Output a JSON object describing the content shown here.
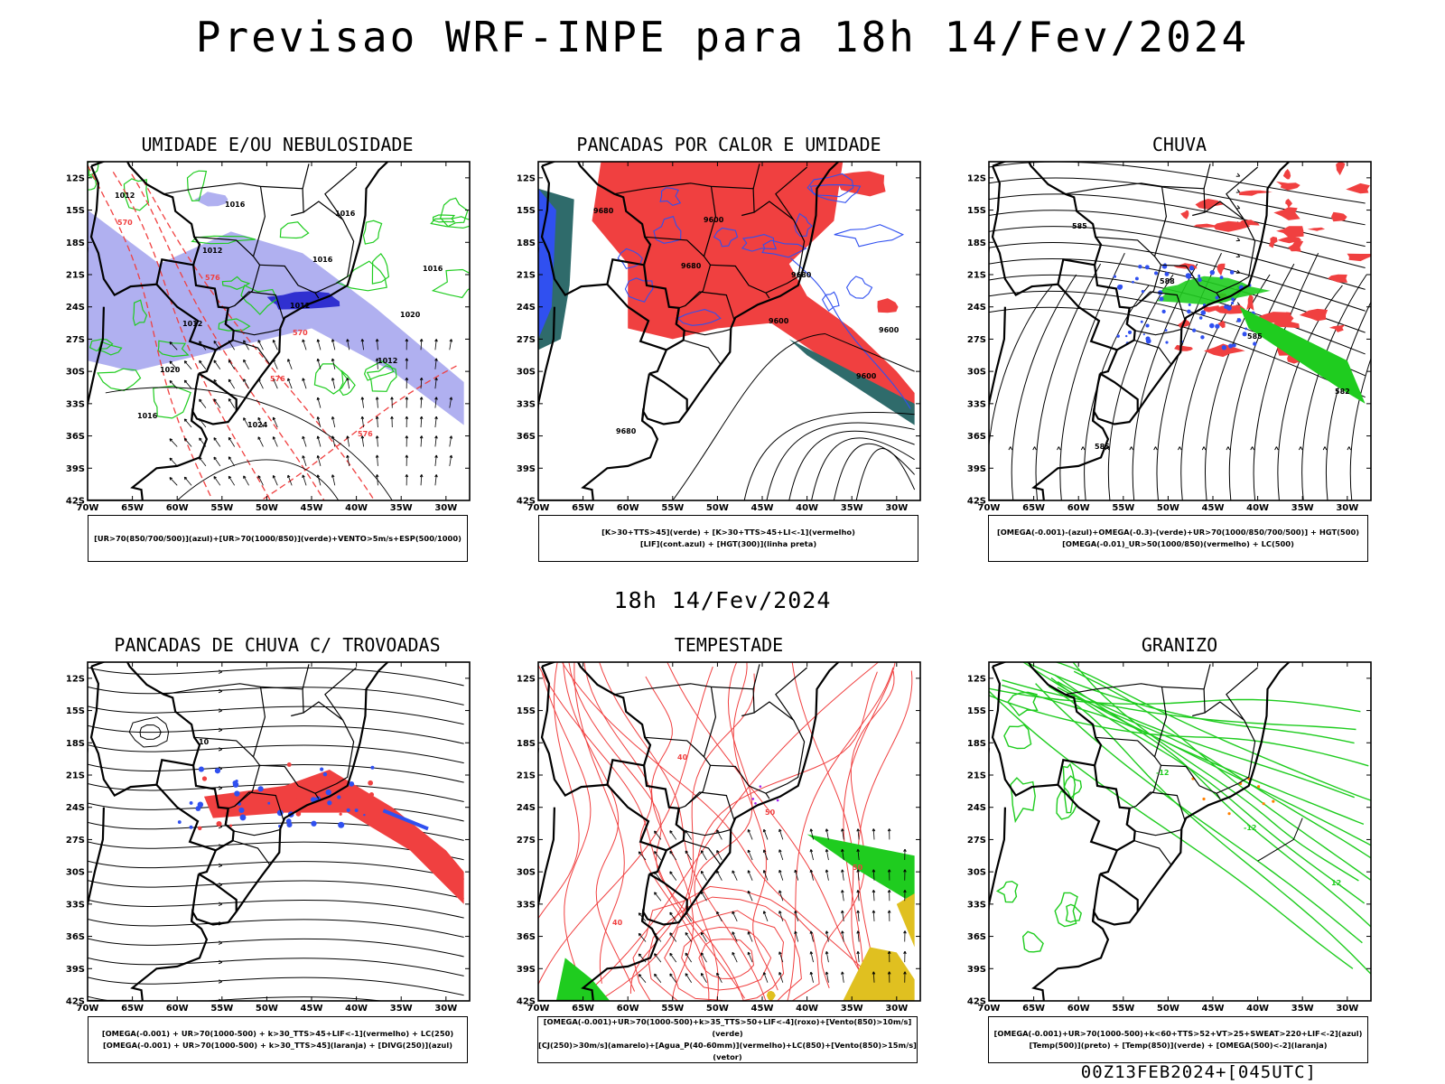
{
  "header": {
    "title": "Previsao WRF-INPE  para 18h 14/Fev/2024",
    "subtitle": "18h 14/Fev/2024",
    "footer": "00Z13FEB2024+[045UTC]"
  },
  "axes": {
    "lat_labels": [
      "12S",
      "15S",
      "18S",
      "21S",
      "24S",
      "27S",
      "30S",
      "33S",
      "36S",
      "39S",
      "42S"
    ],
    "lon_labels": [
      "70W",
      "65W",
      "60W",
      "55W",
      "50W",
      "45W",
      "40W",
      "35W",
      "30W"
    ]
  },
  "colors": {
    "red": "#f04040",
    "green": "#1fcc1f",
    "blue": "#3050f0",
    "lavender": "#b0b0f0",
    "darkblue": "#3030d0",
    "teal": "#2f6b6b",
    "yellow": "#e0c020",
    "orange": "#ff8000",
    "purple": "#a020f0"
  },
  "panels": [
    {
      "title": "UMIDADE E/OU NEBULOSIDADE",
      "legend": [
        "[UR>70(850/700/500)](azul)+[UR>70(1000/850)](verde)+VENTO>5m/s+ESP(500/1000)"
      ],
      "contour_labels": [
        "1012",
        "1012",
        "1012",
        "1012",
        "1016",
        "1016",
        "1016",
        "1020",
        "1020",
        "1024",
        "1016",
        "1016",
        "1012",
        "576",
        "576",
        "570",
        "576",
        "570"
      ]
    },
    {
      "title": "PANCADAS POR CALOR E UMIDADE",
      "legend": [
        "[K>30+TTS>45](verde)  +  [K>30+TTS>45+LI<-1](vermelho)",
        "[LIF](cont.azul)  +  [HGT(300)](linha preta)"
      ],
      "contour_labels": [
        "9680",
        "9680",
        "9600",
        "9600",
        "9680",
        "9600",
        "9680",
        "9600"
      ]
    },
    {
      "title": "CHUVA",
      "legend": [
        "[OMEGA(-0.001)-(azul)+OMEGA(-0.3)-(verde)+UR>70(1000/850/700/500)]  +  HGT(500)",
        "[OMEGA(-0.01)_UR>50(1000/850)(vermelho)  +  LC(500)"
      ],
      "contour_labels": [
        "585",
        "588",
        "585",
        "582",
        "585"
      ]
    },
    {
      "title": "PANCADAS DE CHUVA C/ TROVOADAS",
      "legend": [
        "[OMEGA(-0.001)  +  UR>70(1000-500)  +  k>30_TTS>45+LIF<-1](vermelho)  +  LC(250)",
        "[OMEGA(-0.001)  +  UR>70(1000-500)  +  k>30_TTS>45](laranja)  +  [DIVG(250)](azul)"
      ],
      "contour_labels": [
        "10"
      ]
    },
    {
      "title": "TEMPESTADE",
      "legend": [
        "[OMEGA(-0.001)+UR>70(1000-500)+k>35_TTS>50+LIF<-4](roxo)+[Vento(850)>10m/s](verde)",
        "[CJ(250)>30m/s](amarelo)+[Agua_P(40-60mm)](vermelho)+LC(850)+[Vento(850)>15m/s](vetor)"
      ],
      "contour_labels": [
        "40",
        "50",
        "50",
        "40"
      ]
    },
    {
      "title": "GRANIZO",
      "legend": [
        "[OMEGA(-0.001)+UR>70(1000-500)+k<60+TTS>52+VT>25+SWEAT>220+LIF<-2](azul)",
        "[Temp(500)](preto)  +  [Temp(850)](verde)  +  [OMEGA(500)<-2](laranja)"
      ],
      "contour_labels": [
        "-12",
        "-12",
        "12"
      ]
    }
  ]
}
